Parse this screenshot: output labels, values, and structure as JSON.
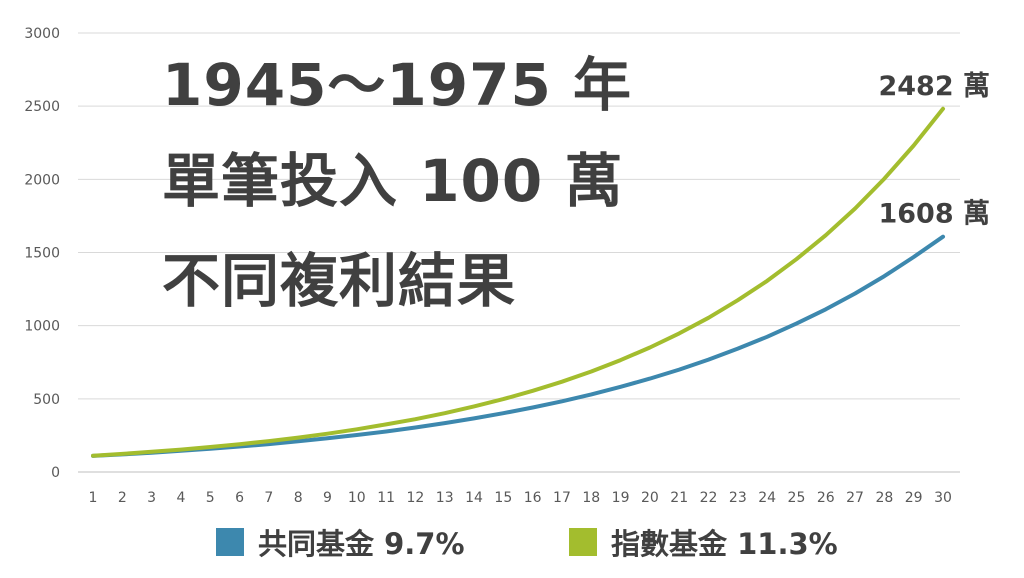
{
  "title_lines": [
    "1945～1975 年",
    "單筆投入 100 萬",
    "不同複利結果"
  ],
  "chart_data": {
    "type": "line",
    "x": [
      1,
      2,
      3,
      4,
      5,
      6,
      7,
      8,
      9,
      10,
      11,
      12,
      13,
      14,
      15,
      16,
      17,
      18,
      19,
      20,
      21,
      22,
      23,
      24,
      25,
      26,
      27,
      28,
      29,
      30
    ],
    "ylim": [
      0,
      3000
    ],
    "yticks": [
      0,
      500,
      1000,
      1500,
      2000,
      2500,
      3000
    ],
    "grid": true,
    "legend_position": "bottom",
    "series": [
      {
        "name": "共同基金 9.7%",
        "color": "#3d88ae",
        "end_label": "1608 萬",
        "values": [
          110,
          120,
          132,
          145,
          159,
          174,
          191,
          210,
          230,
          253,
          277,
          304,
          334,
          366,
          402,
          441,
          483,
          530,
          582,
          638,
          700,
          768,
          843,
          924,
          1014,
          1112,
          1220,
          1339,
          1469,
          1608
        ]
      },
      {
        "name": "指數基金 11.3%",
        "color": "#a3bd2e",
        "end_label": "2482 萬",
        "values": [
          111,
          124,
          138,
          153,
          171,
          190,
          211,
          235,
          262,
          292,
          325,
          361,
          402,
          448,
          498,
          555,
          617,
          687,
          765,
          851,
          947,
          1054,
          1174,
          1306,
          1454,
          1618,
          1801,
          2005,
          2231,
          2482
        ]
      }
    ]
  }
}
